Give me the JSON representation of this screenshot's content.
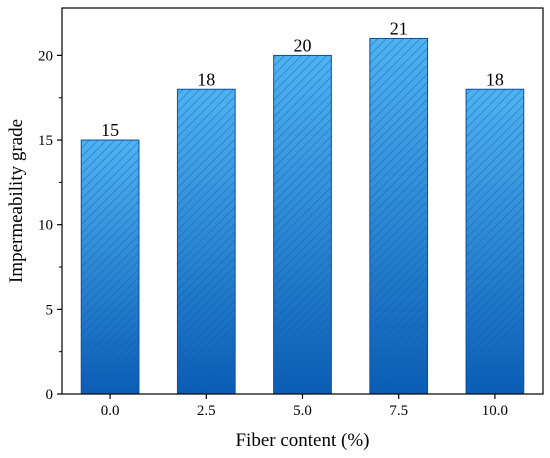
{
  "chart_data": {
    "type": "bar",
    "categories": [
      "0.0",
      "2.5",
      "5.0",
      "7.5",
      "10.0"
    ],
    "values": [
      15,
      18,
      20,
      21,
      18
    ],
    "data_labels": [
      "15",
      "18",
      "20",
      "21",
      "18"
    ],
    "xlabel": "Fiber content (%)",
    "ylabel": "Impermeability grade",
    "ylim": [
      0,
      22.8
    ],
    "yticks": [
      0,
      5,
      10,
      15,
      20
    ],
    "ytick_labels": [
      "0",
      "5",
      "10",
      "15",
      "20"
    ],
    "grid": false,
    "legend": "none",
    "bar_fill_pattern": "diagonal-hatch",
    "colors": {
      "bar_top": "#4fb3f2",
      "bar_bottom": "#0b5cb5",
      "bar_edge": "#0a4f9e",
      "hatch": "#0d5fae"
    }
  }
}
